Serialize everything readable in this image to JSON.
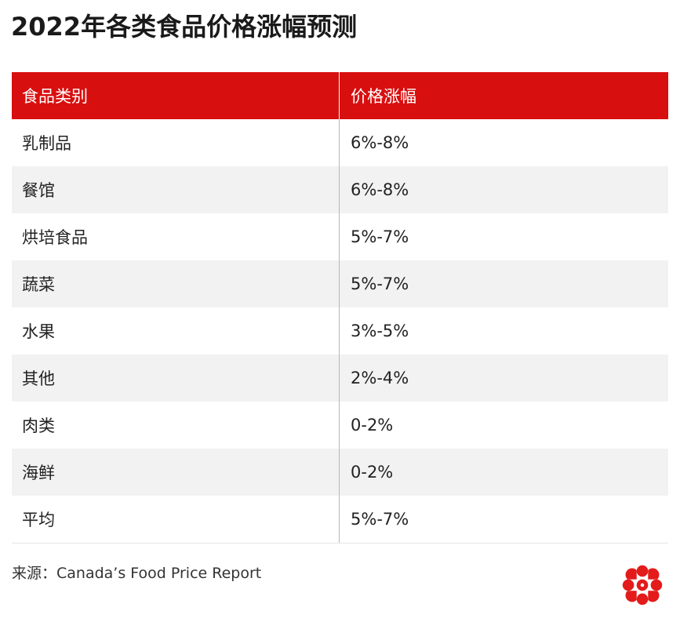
{
  "title": "2022年各类食品价格涨幅预测",
  "table": {
    "headers": [
      "食品类别",
      "价格涨幅"
    ],
    "rows": [
      {
        "category": "乳制品",
        "increase": "6%-8%"
      },
      {
        "category": "餐馆",
        "increase": "6%-8%"
      },
      {
        "category": "烘培食品",
        "increase": "5%-7%"
      },
      {
        "category": "蔬菜",
        "increase": "5%-7%"
      },
      {
        "category": "水果",
        "increase": "3%-5%"
      },
      {
        "category": "其他",
        "increase": "2%-4%"
      },
      {
        "category": "肉类",
        "increase": "0-2%"
      },
      {
        "category": "海鲜",
        "increase": "0-2%"
      },
      {
        "category": "平均",
        "increase": "5%-7%"
      }
    ]
  },
  "source": "来源：Canada’s Food Price Report",
  "colors": {
    "header_bg": "#d80f0f",
    "logo_red": "#e31b1b",
    "stripe": "#f2f2f2"
  },
  "icons": {
    "logo": "cbc-gem-logo-icon"
  }
}
